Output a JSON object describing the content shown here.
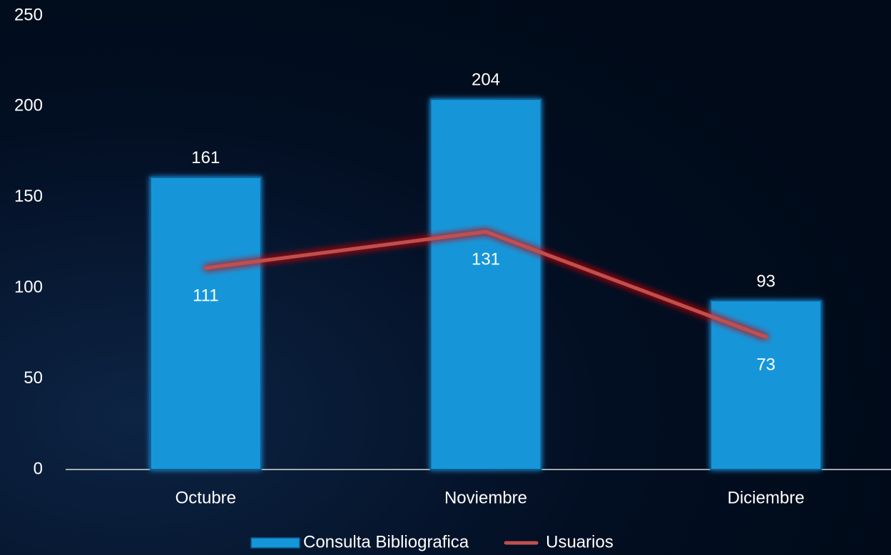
{
  "chart_data": {
    "type": "combo",
    "categories": [
      "Octubre",
      "Noviembre",
      "Diciembre"
    ],
    "series": [
      {
        "name": "Consulta Bibliografica",
        "type": "bar",
        "color": "#1496d9",
        "values": [
          161,
          204,
          93
        ]
      },
      {
        "name": "Usuarios",
        "type": "line",
        "color": "#c0504d",
        "values": [
          111,
          131,
          73
        ]
      }
    ],
    "ylim": [
      0,
      250
    ],
    "yticks": [
      0,
      50,
      100,
      150,
      200,
      250
    ],
    "grid": false,
    "legend": "bottom"
  }
}
